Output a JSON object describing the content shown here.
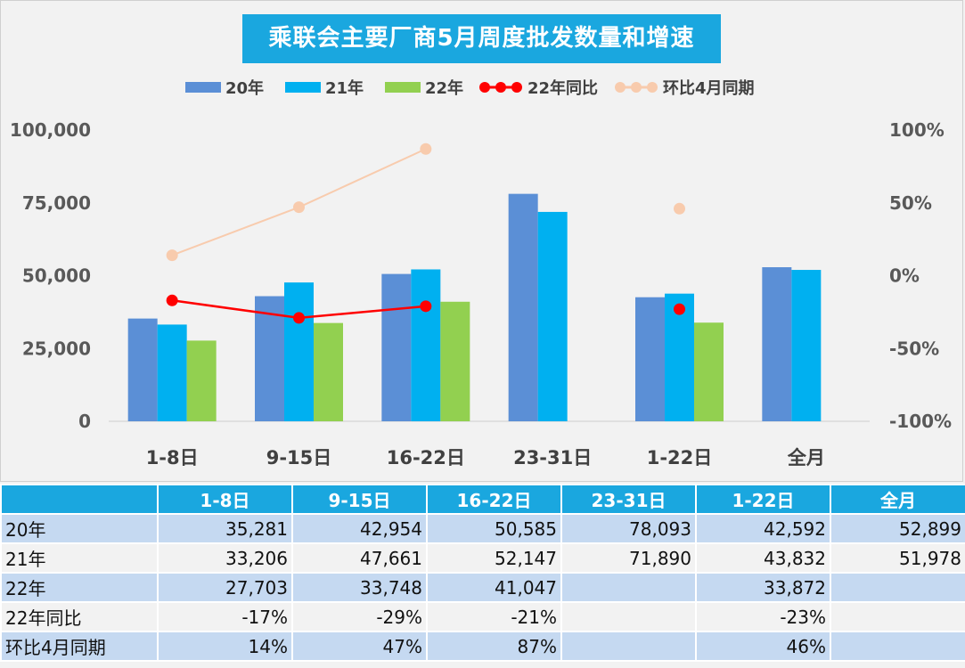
{
  "chart_data": {
    "type": "bar",
    "title": "乘联会主要厂商5月周度批发数量和增速",
    "categories": [
      "1-8日",
      "9-15日",
      "16-22日",
      "23-31日",
      "1-22日",
      "全月"
    ],
    "series": [
      {
        "name": "20年",
        "kind": "bar",
        "axis": "left",
        "color": "#5b8fd6",
        "values": [
          35281,
          42954,
          50585,
          78093,
          42592,
          52899
        ]
      },
      {
        "name": "21年",
        "kind": "bar",
        "axis": "left",
        "color": "#00b0f0",
        "values": [
          33206,
          47661,
          52147,
          71890,
          43832,
          51978
        ]
      },
      {
        "name": "22年",
        "kind": "bar",
        "axis": "left",
        "color": "#92d050",
        "values": [
          27703,
          33748,
          41047,
          null,
          33872,
          null
        ]
      },
      {
        "name": "22年同比",
        "kind": "line",
        "axis": "right",
        "color": "#ff0000",
        "values": [
          -17,
          -29,
          -21,
          null,
          -23,
          null
        ]
      },
      {
        "name": "环比4月同期",
        "kind": "line",
        "axis": "right",
        "color": "#f8cbad",
        "values": [
          14,
          47,
          87,
          null,
          46,
          null
        ]
      }
    ],
    "y_left": {
      "min": 0,
      "max": 100000,
      "ticks": [
        "0",
        "25,000",
        "50,000",
        "75,000",
        "100,000"
      ]
    },
    "y_right": {
      "min": -100,
      "max": 100,
      "unit": "%",
      "ticks": [
        "-100%",
        "-50%",
        "0%",
        "50%",
        "100%"
      ]
    },
    "legend_position": "top",
    "grid": false
  },
  "table": {
    "headers": [
      "1-8日",
      "9-15日",
      "16-22日",
      "23-31日",
      "1-22日",
      "全月"
    ],
    "rows": [
      {
        "label": "20年",
        "cells": [
          "35,281",
          "42,954",
          "50,585",
          "78,093",
          "42,592",
          "52,899"
        ]
      },
      {
        "label": "21年",
        "cells": [
          "33,206",
          "47,661",
          "52,147",
          "71,890",
          "43,832",
          "51,978"
        ]
      },
      {
        "label": "22年",
        "cells": [
          "27,703",
          "33,748",
          "41,047",
          "",
          "33,872",
          ""
        ]
      },
      {
        "label": "22年同比",
        "cells": [
          "-17%",
          "-29%",
          "-21%",
          "",
          "-23%",
          ""
        ]
      },
      {
        "label": "环比4月同期",
        "cells": [
          "14%",
          "47%",
          "87%",
          "",
          "46%",
          ""
        ]
      }
    ]
  }
}
